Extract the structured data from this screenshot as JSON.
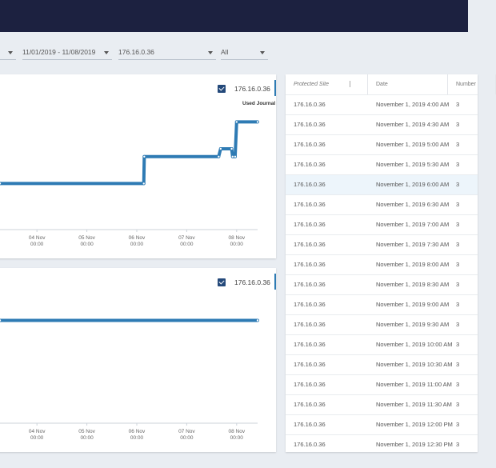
{
  "filters": {
    "date_range": "11/01/2019 - 11/08/2019",
    "site": "176.16.0.36",
    "scope": "All"
  },
  "chart_data": [
    {
      "type": "line",
      "checkbox_label": "176.16.0.36",
      "series_label": "Used Journal",
      "color": "#2e7bb4",
      "x": [
        3.26,
        6.14,
        6.15,
        7.64,
        7.68,
        7.9,
        7.92,
        7.97,
        8.0,
        8.42
      ],
      "values": [
        29,
        29,
        53,
        53,
        60,
        60,
        53,
        53,
        84,
        84
      ],
      "xlim": [
        3.26,
        8.42
      ],
      "ylim": [
        0,
        100
      ],
      "xticks": [
        {
          "value": 4,
          "label": "04 Nov 00:00"
        },
        {
          "value": 5,
          "label": "05 Nov 00:00"
        },
        {
          "value": 6,
          "label": "06 Nov 00:00"
        },
        {
          "value": 7,
          "label": "07 Nov 00:00"
        },
        {
          "value": 8,
          "label": "08 Nov 00:00"
        }
      ]
    },
    {
      "type": "line",
      "checkbox_label": "176.16.0.36",
      "color": "#2e7bb4",
      "x": [
        3.26,
        8.42
      ],
      "values": [
        50,
        50
      ],
      "xlim": [
        3.26,
        8.42
      ],
      "ylim": [
        0,
        100
      ],
      "xticks": [
        {
          "value": 4,
          "label": "04 Nov 00:00"
        },
        {
          "value": 5,
          "label": "05 Nov 00:00"
        },
        {
          "value": 6,
          "label": "06 Nov 00:00"
        },
        {
          "value": 7,
          "label": "07 Nov 00:00"
        },
        {
          "value": 8,
          "label": "08 Nov 00:00"
        }
      ]
    }
  ],
  "table": {
    "columns": [
      "Protected Site",
      "Date",
      "Number"
    ],
    "rows": [
      [
        "176.16.0.36",
        "November 1, 2019 4:00 AM",
        "3"
      ],
      [
        "176.16.0.36",
        "November 1, 2019 4:30 AM",
        "3"
      ],
      [
        "176.16.0.36",
        "November 1, 2019 5:00 AM",
        "3"
      ],
      [
        "176.16.0.36",
        "November 1, 2019 5:30 AM",
        "3"
      ],
      [
        "176.16.0.36",
        "November 1, 2019 6:00 AM",
        "3"
      ],
      [
        "176.16.0.36",
        "November 1, 2019 6:30 AM",
        "3"
      ],
      [
        "176.16.0.36",
        "November 1, 2019 7:00 AM",
        "3"
      ],
      [
        "176.16.0.36",
        "November 1, 2019 7:30 AM",
        "3"
      ],
      [
        "176.16.0.36",
        "November 1, 2019 8:00 AM",
        "3"
      ],
      [
        "176.16.0.36",
        "November 1, 2019 8:30 AM",
        "3"
      ],
      [
        "176.16.0.36",
        "November 1, 2019 9:00 AM",
        "3"
      ],
      [
        "176.16.0.36",
        "November 1, 2019 9:30 AM",
        "3"
      ],
      [
        "176.16.0.36",
        "November 1, 2019 10:00 AM",
        "3"
      ],
      [
        "176.16.0.36",
        "November 1, 2019 10:30 AM",
        "3"
      ],
      [
        "176.16.0.36",
        "November 1, 2019 11:00 AM",
        "3"
      ],
      [
        "176.16.0.36",
        "November 1, 2019 11:30 AM",
        "3"
      ],
      [
        "176.16.0.36",
        "November 1, 2019 12:00 PM",
        "3"
      ],
      [
        "176.16.0.36",
        "November 1, 2019 12:30 PM",
        "3"
      ]
    ]
  }
}
